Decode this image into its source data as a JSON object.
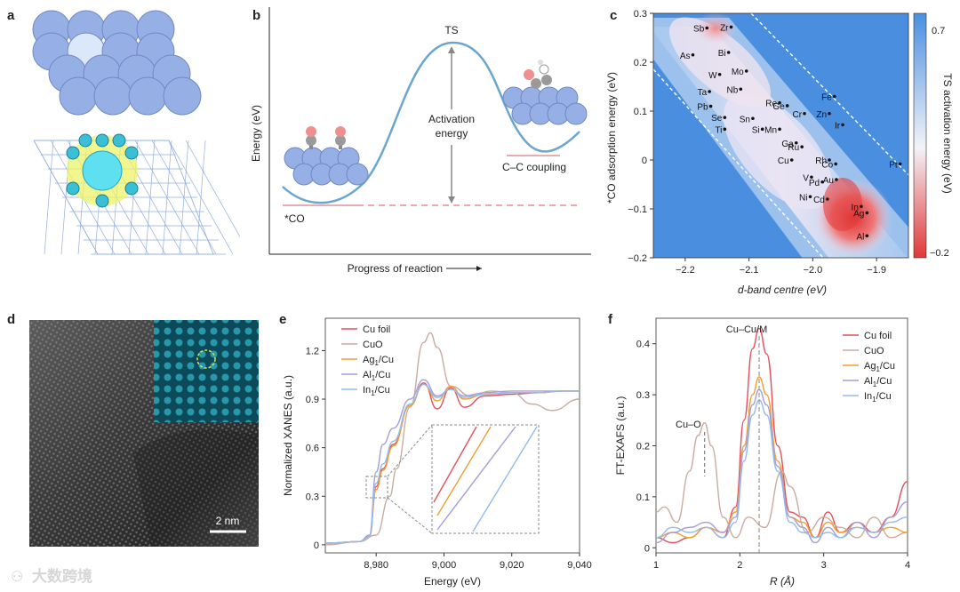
{
  "panels": {
    "a": {
      "label": "a"
    },
    "b": {
      "label": "b",
      "ts_label": "TS",
      "activation_label_line1": "Activation",
      "activation_label_line2": "energy",
      "co_label": "*CO",
      "coupling_label": "C–C coupling",
      "ylabel": "Energy (eV)",
      "xlabel": "Progress of reaction"
    },
    "c": {
      "label": "c",
      "xlabel": "d-band centre (eV)",
      "ylabel": "*CO adsorption energy (eV)",
      "colorbar_label": "TS activation energy (eV)",
      "colorbar_max": "0.7",
      "colorbar_min": "−0.2"
    },
    "d": {
      "label": "d",
      "scale_label": "2 nm"
    },
    "e": {
      "label": "e",
      "legend": [
        "Cu foil",
        "CuO",
        "Ag1/Cu",
        "Al1/Cu",
        "In1/Cu"
      ]
    },
    "f": {
      "label": "f",
      "peak_label": "Cu–Cu/M",
      "cuo_label": "Cu–O",
      "legend": [
        "Cu foil",
        "CuO",
        "Ag1/Cu",
        "Al1/Cu",
        "In1/Cu"
      ]
    }
  },
  "watermark": "大数跨境",
  "colors": {
    "cu_foil": "#e4505a",
    "cuo": "#c8aca0",
    "ag": "#f0a030",
    "al": "#a89cd8",
    "in": "#92bce8"
  },
  "chart_data": [
    {
      "type": "scatter",
      "title": "c",
      "xlabel": "d-band centre (eV)",
      "ylabel": "*CO adsorption energy (eV)",
      "xlim": [
        -2.25,
        -1.85
      ],
      "ylim": [
        -0.2,
        0.3
      ],
      "xticks": [
        "−2.2",
        "−2.1",
        "−2.0",
        "−1.9"
      ],
      "yticks": [
        "0.3",
        "0.2",
        "0.1",
        "0",
        "−0.1",
        "−0.2"
      ],
      "points": [
        {
          "name": "Zr",
          "x": -2.128,
          "y": 0.272
        },
        {
          "name": "Sb",
          "x": -2.166,
          "y": 0.27
        },
        {
          "name": "Bi",
          "x": -2.132,
          "y": 0.22
        },
        {
          "name": "As",
          "x": -2.188,
          "y": 0.215
        },
        {
          "name": "Mo",
          "x": -2.104,
          "y": 0.182
        },
        {
          "name": "W",
          "x": -2.146,
          "y": 0.175
        },
        {
          "name": "Nb",
          "x": -2.113,
          "y": 0.145
        },
        {
          "name": "Ta",
          "x": -2.162,
          "y": 0.14
        },
        {
          "name": "Fe",
          "x": -1.966,
          "y": 0.13
        },
        {
          "name": "Re",
          "x": -2.052,
          "y": 0.117
        },
        {
          "name": "Ge",
          "x": -2.04,
          "y": 0.111
        },
        {
          "name": "Pb",
          "x": -2.16,
          "y": 0.11
        },
        {
          "name": "Cr",
          "x": -2.013,
          "y": 0.095
        },
        {
          "name": "Zn",
          "x": -1.974,
          "y": 0.095
        },
        {
          "name": "Se",
          "x": -2.138,
          "y": 0.087
        },
        {
          "name": "Sn",
          "x": -2.094,
          "y": 0.085
        },
        {
          "name": "Ir",
          "x": -1.953,
          "y": 0.072
        },
        {
          "name": "Ti",
          "x": -2.138,
          "y": 0.063
        },
        {
          "name": "Si",
          "x": -2.079,
          "y": 0.063
        },
        {
          "name": "Mn",
          "x": -2.052,
          "y": 0.063
        },
        {
          "name": "Ga",
          "x": -2.026,
          "y": 0.035
        },
        {
          "name": "Ru",
          "x": -2.017,
          "y": 0.027
        },
        {
          "name": "Cu",
          "x": -2.033,
          "y": 0.0
        },
        {
          "name": "Rh",
          "x": -1.974,
          "y": 0.0
        },
        {
          "name": "Pt",
          "x": -1.863,
          "y": -0.008
        },
        {
          "name": "Co",
          "x": -1.964,
          "y": -0.008
        },
        {
          "name": "V",
          "x": -2.002,
          "y": -0.035
        },
        {
          "name": "Au",
          "x": -1.963,
          "y": -0.04
        },
        {
          "name": "Pd",
          "x": -1.985,
          "y": -0.045
        },
        {
          "name": "Ni",
          "x": -2.004,
          "y": -0.075
        },
        {
          "name": "Cd",
          "x": -1.977,
          "y": -0.08
        },
        {
          "name": "In",
          "x": -1.924,
          "y": -0.095
        },
        {
          "name": "Ag",
          "x": -1.915,
          "y": -0.108
        },
        {
          "name": "Al",
          "x": -1.915,
          "y": -0.155
        }
      ]
    },
    {
      "type": "line",
      "title": "e",
      "xlabel": "Energy (eV)",
      "ylabel": "Normalized XANES (a.u.)",
      "xlim": [
        8965,
        9040
      ],
      "ylim": [
        -0.05,
        1.4
      ],
      "xticks": [
        "8,980",
        "9,000",
        "9,020",
        "9,040"
      ],
      "yticks": [
        "0",
        "0.3",
        "0.6",
        "0.9",
        "1.2"
      ],
      "series": [
        {
          "name": "Cu foil",
          "x": [
            8965,
            8975,
            8978,
            8980,
            8982,
            8985,
            8990,
            8994,
            8998,
            9002,
            9006,
            9012,
            9020,
            9028,
            9035,
            9040
          ],
          "values": [
            0.01,
            0.02,
            0.05,
            0.36,
            0.47,
            0.62,
            0.86,
            1.0,
            0.84,
            0.97,
            0.85,
            0.92,
            0.93,
            0.94,
            0.95,
            0.95
          ]
        },
        {
          "name": "CuO",
          "x": [
            8965,
            8975,
            8980,
            8984,
            8986,
            8990,
            8994,
            8996,
            8998,
            9002,
            9008,
            9014,
            9020,
            9026,
            9032,
            9040
          ],
          "values": [
            0.0,
            0.02,
            0.06,
            0.3,
            0.47,
            0.85,
            1.25,
            1.31,
            1.22,
            0.98,
            0.92,
            0.95,
            0.94,
            0.87,
            0.83,
            0.9
          ]
        },
        {
          "name": "Ag1/Cu",
          "x": [
            8965,
            8975,
            8978,
            8980,
            8982,
            8985,
            8990,
            8994,
            8998,
            9002,
            9006,
            9012,
            9020,
            9028,
            9035,
            9040
          ],
          "values": [
            0.01,
            0.02,
            0.05,
            0.34,
            0.46,
            0.61,
            0.86,
            0.99,
            0.89,
            0.98,
            0.9,
            0.93,
            0.94,
            0.94,
            0.95,
            0.95
          ]
        },
        {
          "name": "Al1/Cu",
          "x": [
            8965,
            8975,
            8978,
            8980,
            8982,
            8985,
            8990,
            8994,
            8998,
            9002,
            9006,
            9012,
            9020,
            9028,
            9035,
            9040
          ],
          "values": [
            0.01,
            0.02,
            0.06,
            0.45,
            0.62,
            0.72,
            0.9,
            1.02,
            0.92,
            0.96,
            0.92,
            0.94,
            0.95,
            0.95,
            0.95,
            0.95
          ]
        },
        {
          "name": "In1/Cu",
          "x": [
            8965,
            8975,
            8978,
            8980,
            8982,
            8985,
            8990,
            8994,
            8998,
            9002,
            9006,
            9012,
            9020,
            9028,
            9035,
            9040
          ],
          "values": [
            0.01,
            0.02,
            0.05,
            0.38,
            0.5,
            0.64,
            0.87,
            0.99,
            0.91,
            0.96,
            0.91,
            0.93,
            0.94,
            0.94,
            0.95,
            0.95
          ]
        }
      ]
    },
    {
      "type": "line",
      "title": "f",
      "xlabel": "R (Å)",
      "ylabel": "FT-EXAFS (a.u.)",
      "xlim": [
        1,
        4
      ],
      "ylim": [
        -0.01,
        0.45
      ],
      "xticks": [
        "1",
        "2",
        "3",
        "4"
      ],
      "yticks": [
        "0",
        "0.1",
        "0.2",
        "0.3",
        "0.4"
      ],
      "series": [
        {
          "name": "Cu foil",
          "x": [
            1.0,
            1.2,
            1.4,
            1.6,
            1.8,
            1.95,
            2.05,
            2.15,
            2.23,
            2.32,
            2.45,
            2.6,
            2.75,
            2.9,
            3.05,
            3.2,
            3.4,
            3.6,
            3.8,
            4.0
          ],
          "values": [
            0.02,
            0.01,
            0.02,
            0.04,
            0.02,
            0.08,
            0.25,
            0.39,
            0.43,
            0.38,
            0.2,
            0.07,
            0.06,
            0.02,
            0.07,
            0.03,
            0.05,
            0.03,
            0.06,
            0.13
          ]
        },
        {
          "name": "CuO",
          "x": [
            1.0,
            1.1,
            1.25,
            1.4,
            1.5,
            1.58,
            1.66,
            1.8,
            1.95,
            2.1,
            2.3,
            2.5,
            2.6,
            2.8,
            3.0,
            3.2,
            3.4,
            3.6,
            3.8,
            4.0
          ],
          "values": [
            0.07,
            0.08,
            0.05,
            0.15,
            0.22,
            0.245,
            0.2,
            0.06,
            0.02,
            0.06,
            0.04,
            0.15,
            0.12,
            0.03,
            0.06,
            0.04,
            0.02,
            0.06,
            0.02,
            0.03
          ]
        },
        {
          "name": "Ag1/Cu",
          "x": [
            1.0,
            1.2,
            1.4,
            1.6,
            1.8,
            1.95,
            2.05,
            2.15,
            2.23,
            2.32,
            2.45,
            2.6,
            2.75,
            2.9,
            3.05,
            3.2,
            3.4,
            3.6,
            3.8,
            4.0
          ],
          "values": [
            0.02,
            0.03,
            0.02,
            0.04,
            0.03,
            0.07,
            0.2,
            0.3,
            0.335,
            0.3,
            0.17,
            0.06,
            0.05,
            0.02,
            0.05,
            0.03,
            0.04,
            0.03,
            0.04,
            0.03
          ]
        },
        {
          "name": "Al1/Cu",
          "x": [
            1.0,
            1.2,
            1.4,
            1.6,
            1.8,
            1.95,
            2.05,
            2.15,
            2.23,
            2.32,
            2.45,
            2.6,
            2.75,
            2.9,
            3.05,
            3.2,
            3.4,
            3.6,
            3.8,
            4.0
          ],
          "values": [
            0.01,
            0.03,
            0.04,
            0.05,
            0.03,
            0.06,
            0.19,
            0.28,
            0.31,
            0.28,
            0.16,
            0.06,
            0.04,
            0.01,
            0.04,
            0.02,
            0.05,
            0.02,
            0.06,
            0.09
          ]
        },
        {
          "name": "In1/Cu",
          "x": [
            1.0,
            1.2,
            1.4,
            1.6,
            1.8,
            1.95,
            2.05,
            2.15,
            2.23,
            2.32,
            2.45,
            2.6,
            2.75,
            2.9,
            3.05,
            3.2,
            3.4,
            3.6,
            3.8,
            4.0
          ],
          "values": [
            0.02,
            0.04,
            0.03,
            0.04,
            0.02,
            0.05,
            0.17,
            0.26,
            0.29,
            0.26,
            0.15,
            0.05,
            0.03,
            0.02,
            0.03,
            0.02,
            0.04,
            0.03,
            0.05,
            0.06
          ]
        }
      ]
    }
  ]
}
